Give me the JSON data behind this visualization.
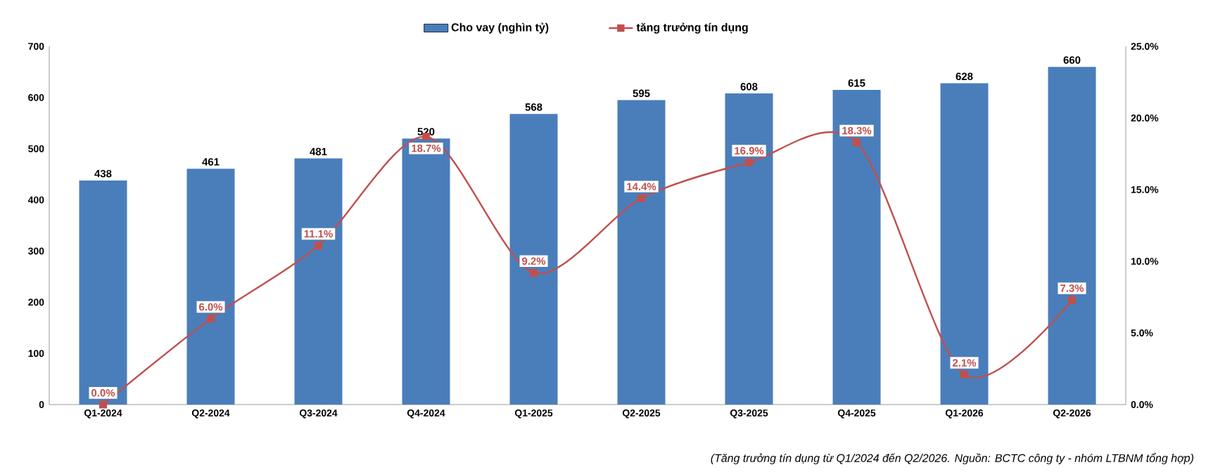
{
  "chart_data": {
    "type": "bar",
    "categories": [
      "Q1-2024",
      "Q2-2024",
      "Q3-2024",
      "Q4-2024",
      "Q1-2025",
      "Q2-2025",
      "Q3-2025",
      "Q4-2025",
      "Q1-2026",
      "Q2-2026"
    ],
    "series": [
      {
        "name": "Cho vay (nghìn tỷ)",
        "color": "#4a7ebb",
        "values": [
          438,
          461,
          481,
          520,
          568,
          595,
          608,
          615,
          628,
          660
        ],
        "value_labels": [
          "438",
          "461",
          "481",
          "520",
          "568",
          "595",
          "608",
          "615",
          "628",
          "660"
        ]
      },
      {
        "name": "tăng trưởng tín dụng",
        "type": "line",
        "axis": "y2",
        "color": "#c0504d",
        "values": [
          0.0,
          6.0,
          11.1,
          18.7,
          9.2,
          14.4,
          16.9,
          18.3,
          2.1,
          7.3
        ],
        "value_labels": [
          "0.0%",
          "6.0%",
          "11.1%",
          "18.7%",
          "9.2%",
          "14.4%",
          "16.9%",
          "18.3%",
          "2.1%",
          "7.3%"
        ]
      }
    ],
    "ylim": [
      0,
      700
    ],
    "yticks": [
      0,
      100,
      200,
      300,
      400,
      500,
      600,
      700
    ],
    "y2lim": [
      0,
      25
    ],
    "y2ticks": [
      {
        "value": 0,
        "label": "0.0%"
      },
      {
        "value": 5,
        "label": "5.0%"
      },
      {
        "value": 10,
        "label": "10.0%"
      },
      {
        "value": 15,
        "label": "15.0%"
      },
      {
        "value": 20,
        "label": "20.0%"
      },
      {
        "value": 25,
        "label": "25.0%"
      }
    ],
    "marker": "square",
    "line_style": "solid",
    "legend": "top",
    "grid": false,
    "annotations": [
      "(Tăng trưởng tín dụng từ Q1/2024 đến Q2/2026. Nguồn: BCTC công ty - nhóm LTBNM tổng hợp)"
    ]
  }
}
